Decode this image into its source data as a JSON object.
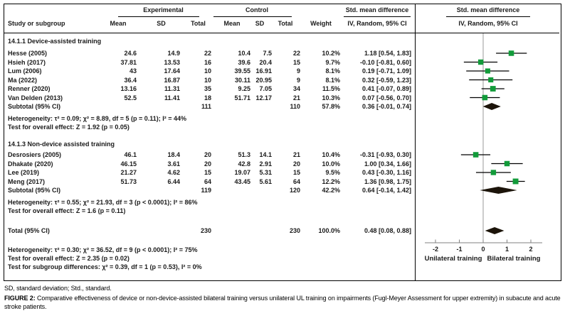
{
  "table": {
    "headers": {
      "study": "Study or subgroup",
      "experimental": "Experimental",
      "control": "Control",
      "mean": "Mean",
      "sd": "SD",
      "total": "Total",
      "weight": "Weight",
      "smd": "Std. mean difference",
      "method": "IV, Random, 95% CI"
    }
  },
  "chart_data": {
    "type": "scatter",
    "variant": "forest-plot",
    "effect_measure": "Std. mean difference, IV, Random, 95% CI",
    "xlim": [
      -2.5,
      2.5
    ],
    "ticks": [
      -2,
      -1,
      0,
      1,
      2
    ],
    "zero_line": 0,
    "x_left_label": "Unilateral training",
    "x_right_label": "Bilateral training",
    "marker_color": "#129b3a",
    "diamond_color": "#1c140a",
    "groups": [
      {
        "title": "14.1.1 Device-assisted training",
        "studies": [
          {
            "study": "Hesse (2005)",
            "exp_mean": "24.6",
            "exp_sd": "14.9",
            "exp_total": "22",
            "ctrl_mean": "10.4",
            "ctrl_sd": "7.5",
            "ctrl_total": "22",
            "weight": "10.2%",
            "ci_label": "1.18 [0.54, 1.83]",
            "est": 1.18,
            "lo": 0.54,
            "hi": 1.83
          },
          {
            "study": "Hsieh (2017)",
            "exp_mean": "37.81",
            "exp_sd": "13.53",
            "exp_total": "16",
            "ctrl_mean": "39.6",
            "ctrl_sd": "20.4",
            "ctrl_total": "15",
            "weight": "9.7%",
            "ci_label": "-0.10 [-0.81, 0.60]",
            "est": -0.1,
            "lo": -0.81,
            "hi": 0.6
          },
          {
            "study": "Lum (2006)",
            "exp_mean": "43",
            "exp_sd": "17.64",
            "exp_total": "10",
            "ctrl_mean": "39.55",
            "ctrl_sd": "16.91",
            "ctrl_total": "9",
            "weight": "8.1%",
            "ci_label": "0.19 [-0.71, 1.09]",
            "est": 0.19,
            "lo": -0.71,
            "hi": 1.09
          },
          {
            "study": "Ma (2022)",
            "exp_mean": "36.4",
            "exp_sd": "16.87",
            "exp_total": "10",
            "ctrl_mean": "30.11",
            "ctrl_sd": "20.95",
            "ctrl_total": "9",
            "weight": "8.1%",
            "ci_label": "0.32 [-0.59, 1.23]",
            "est": 0.32,
            "lo": -0.59,
            "hi": 1.23
          },
          {
            "study": "Renner (2020)",
            "exp_mean": "13.16",
            "exp_sd": "11.31",
            "exp_total": "35",
            "ctrl_mean": "9.25",
            "ctrl_sd": "7.05",
            "ctrl_total": "34",
            "weight": "11.5%",
            "ci_label": "0.41 [-0.07, 0.89]",
            "est": 0.41,
            "lo": -0.07,
            "hi": 0.89
          },
          {
            "study": "Van Delden (2013)",
            "exp_mean": "52.5",
            "exp_sd": "11.41",
            "exp_total": "18",
            "ctrl_mean": "51.71",
            "ctrl_sd": "12.17",
            "ctrl_total": "21",
            "weight": "10.3%",
            "ci_label": "0.07 [-0.56, 0.70]",
            "est": 0.07,
            "lo": -0.56,
            "hi": 0.7
          }
        ],
        "subtotal": {
          "label": "Subtotal (95% CI)",
          "exp_total": "111",
          "ctrl_total": "110",
          "weight": "57.8%",
          "ci_label": "0.36 [-0.01, 0.74]",
          "est": 0.36,
          "lo": -0.01,
          "hi": 0.74
        },
        "heterogeneity": "Heterogeneity: τ² = 0.09; χ² = 8.89, df = 5 (p = 0.11); I² = 44%",
        "overall_effect": "Test for overall effect: Z = 1.92 (p = 0.05)"
      },
      {
        "title": "14.1.3 Non-device assisted training",
        "studies": [
          {
            "study": "Desrosiers (2005)",
            "exp_mean": "46.1",
            "exp_sd": "18.4",
            "exp_total": "20",
            "ctrl_mean": "51.3",
            "ctrl_sd": "14.1",
            "ctrl_total": "21",
            "weight": "10.4%",
            "ci_label": "-0.31 [-0.93, 0.30]",
            "est": -0.31,
            "lo": -0.93,
            "hi": 0.3
          },
          {
            "study": "Dhakate (2020)",
            "exp_mean": "46.15",
            "exp_sd": "3.61",
            "exp_total": "20",
            "ctrl_mean": "42.8",
            "ctrl_sd": "2.91",
            "ctrl_total": "20",
            "weight": "10.0%",
            "ci_label": "1.00 [0.34, 1.66]",
            "est": 1.0,
            "lo": 0.34,
            "hi": 1.66
          },
          {
            "study": "Lee (2019)",
            "exp_mean": "21.27",
            "exp_sd": "4.62",
            "exp_total": "15",
            "ctrl_mean": "19.07",
            "ctrl_sd": "5.31",
            "ctrl_total": "15",
            "weight": "9.5%",
            "ci_label": "0.43 [-0.30, 1.16]",
            "est": 0.43,
            "lo": -0.3,
            "hi": 1.16
          },
          {
            "study": "Meng (2017)",
            "exp_mean": "51.73",
            "exp_sd": "6.44",
            "exp_total": "64",
            "ctrl_mean": "43.45",
            "ctrl_sd": "5.61",
            "ctrl_total": "64",
            "weight": "12.2%",
            "ci_label": "1.36 [0.98, 1.75]",
            "est": 1.36,
            "lo": 0.98,
            "hi": 1.75
          }
        ],
        "subtotal": {
          "label": "Subtotal (95% CI)",
          "exp_total": "119",
          "ctrl_total": "120",
          "weight": "42.2%",
          "ci_label": "0.64 [-0.14, 1.42]",
          "est": 0.64,
          "lo": -0.14,
          "hi": 1.42
        },
        "heterogeneity": "Heterogeneity: τ² = 0.55; χ² = 21.93, df = 3 (p < 0.0001); I² = 86%",
        "overall_effect": "Test for overall effect: Z = 1.6 (p = 0.11)"
      }
    ],
    "total": {
      "label": "Total (95% CI)",
      "exp_total": "230",
      "ctrl_total": "230",
      "weight": "100.0%",
      "ci_label": "0.48 [0.08, 0.88]",
      "est": 0.48,
      "lo": 0.08,
      "hi": 0.88
    },
    "footer_stats": [
      "Heterogeneity: τ² = 0.30; χ² = 36.52, df = 9 (p < 0.0001); I² = 75%",
      "Test for overall effect: Z = 2.35 (p = 0.02)",
      "Test for subgroup differences: χ² = 0.39, df = 1 (p = 0.53), I² = 0%"
    ]
  },
  "caption": {
    "footnote": "SD, standard deviation; Std., standard.",
    "figure_label": "FIGURE 2:",
    "figure_text": "Comparative effectiveness of device or non-device-assisted bilateral training versus unilateral UL training on impairments (Fugl-Meyer Assessment for upper extremity) in subacute and acute stroke patients."
  }
}
